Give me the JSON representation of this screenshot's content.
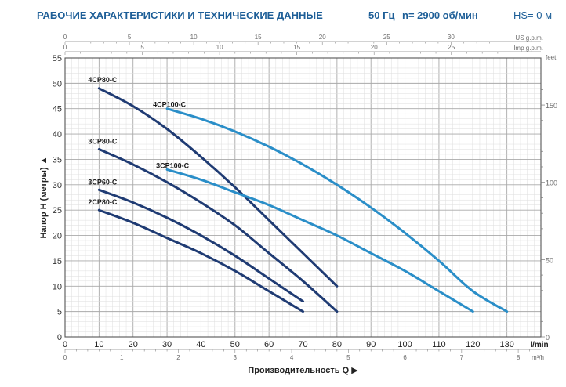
{
  "header": {
    "title": "РАБОЧИЕ ХАРАКТЕРИСТИКИ И ТЕХНИЧЕСКИЕ ДАННЫЕ",
    "frequency": "50 Гц",
    "speed": "n= 2900 об/мин",
    "suction": "HS= 0 м"
  },
  "colors": {
    "dark_series": "#1f3b73",
    "light_series": "#2a8ec8",
    "grid": "#b5b5b5",
    "axis_text": "#6b6b6b",
    "header_text": "#1d5e97"
  },
  "chart_data": {
    "type": "line",
    "ylabel": "Напор H (метры)",
    "xlabel": "Производительность Q",
    "ylim": [
      0,
      55
    ],
    "xlim": [
      0,
      140
    ],
    "grid": true,
    "y_ticks": [
      "0",
      "5",
      "10",
      "15",
      "20",
      "25",
      "30",
      "35",
      "40",
      "45",
      "50",
      "55"
    ],
    "x_ticks_lmin": [
      "0",
      "10",
      "20",
      "30",
      "40",
      "50",
      "60",
      "70",
      "80",
      "90",
      "100",
      "110",
      "120",
      "130"
    ],
    "x_unit_lmin": "l/min",
    "x_ticks_m3h": [
      {
        "label": "0",
        "at_lmin": 0
      },
      {
        "label": "1",
        "at_lmin": 16.67
      },
      {
        "label": "2",
        "at_lmin": 33.33
      },
      {
        "label": "3",
        "at_lmin": 50
      },
      {
        "label": "4",
        "at_lmin": 66.67
      },
      {
        "label": "5",
        "at_lmin": 83.33
      },
      {
        "label": "6",
        "at_lmin": 100
      },
      {
        "label": "7",
        "at_lmin": 116.67
      },
      {
        "label": "8",
        "at_lmin": 133.33
      }
    ],
    "x_unit_m3h": "m³/h",
    "top_us_ticks": [
      {
        "label": "0",
        "at_lmin": 0
      },
      {
        "label": "5",
        "at_lmin": 18.93
      },
      {
        "label": "10",
        "at_lmin": 37.85
      },
      {
        "label": "15",
        "at_lmin": 56.78
      },
      {
        "label": "20",
        "at_lmin": 75.7
      },
      {
        "label": "25",
        "at_lmin": 94.63
      },
      {
        "label": "30",
        "at_lmin": 113.56
      }
    ],
    "top_us_unit": "US g.p.m.",
    "top_imp_ticks": [
      {
        "label": "0",
        "at_lmin": 0
      },
      {
        "label": "5",
        "at_lmin": 22.73
      },
      {
        "label": "10",
        "at_lmin": 45.46
      },
      {
        "label": "15",
        "at_lmin": 68.19
      },
      {
        "label": "20",
        "at_lmin": 90.92
      },
      {
        "label": "25",
        "at_lmin": 113.65
      }
    ],
    "top_imp_unit": "Imp g.p.m.",
    "right_unit": "feet",
    "right_ticks": [
      {
        "label": "0",
        "at_m": 0
      },
      {
        "label": "50",
        "at_m": 15.24
      },
      {
        "label": "100",
        "at_m": 30.48
      },
      {
        "label": "150",
        "at_m": 45.72
      }
    ],
    "series": [
      {
        "name": "4CP80-C",
        "color": "dark",
        "x": [
          10,
          20,
          30,
          40,
          50,
          60,
          70,
          80
        ],
        "y": [
          49,
          45.5,
          41,
          35.5,
          29.5,
          23,
          16.5,
          10
        ]
      },
      {
        "name": "3CP80-C",
        "color": "dark",
        "x": [
          10,
          20,
          30,
          40,
          50,
          60,
          70,
          80
        ],
        "y": [
          37,
          34,
          30.5,
          26.5,
          22,
          16.5,
          11,
          5
        ]
      },
      {
        "name": "3CP60-C",
        "color": "dark",
        "x": [
          10,
          20,
          30,
          40,
          50,
          60,
          70
        ],
        "y": [
          29,
          26.5,
          23.5,
          20,
          16,
          11.5,
          7
        ]
      },
      {
        "name": "2CP80-C",
        "color": "dark",
        "x": [
          10,
          20,
          30,
          40,
          50,
          60,
          70
        ],
        "y": [
          25,
          22.5,
          19.5,
          16.5,
          13,
          9,
          5
        ]
      },
      {
        "name": "4CP100-C",
        "color": "light",
        "x": [
          30,
          40,
          50,
          60,
          70,
          80,
          90,
          100,
          110,
          120,
          130
        ],
        "y": [
          45,
          43,
          40.5,
          37.5,
          34,
          30,
          25.5,
          20.5,
          15,
          9,
          5
        ]
      },
      {
        "name": "3CP100-C",
        "color": "light",
        "x": [
          30,
          40,
          50,
          60,
          70,
          80,
          90,
          100,
          110,
          120
        ],
        "y": [
          33,
          31,
          28.5,
          26,
          23,
          20,
          16.5,
          13,
          9,
          5
        ]
      }
    ]
  }
}
